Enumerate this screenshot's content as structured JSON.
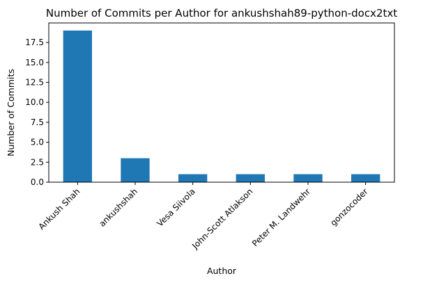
{
  "chart_data": {
    "type": "bar",
    "title": "Number of Commits per Author for ankushshah89-python-docx2txt",
    "xlabel": "Author",
    "ylabel": "Number of Commits",
    "categories": [
      "Ankush Shah",
      "ankushshah",
      "Vesa Siivola",
      "John-Scott Atlakson",
      "Peter M. Landwehr",
      "gonzocoder"
    ],
    "values": [
      19,
      3,
      1,
      1,
      1,
      1
    ],
    "ylim": [
      0,
      19.95
    ],
    "yticks": [
      0.0,
      2.5,
      5.0,
      7.5,
      10.0,
      12.5,
      15.0,
      17.5
    ],
    "grid": false,
    "legend": "none",
    "bar_color": "#1f77b4"
  }
}
